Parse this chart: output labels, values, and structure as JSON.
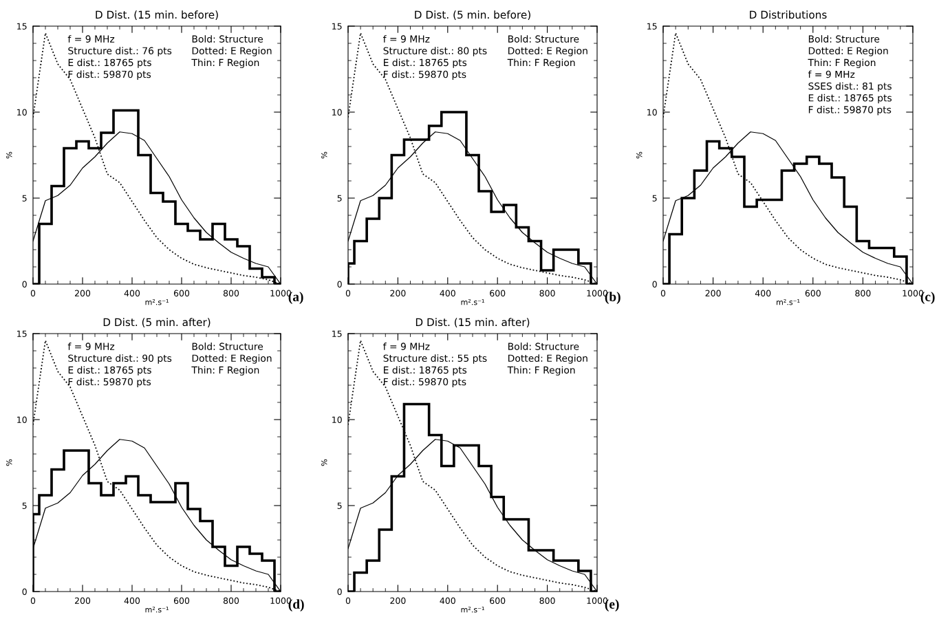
{
  "chart_data": [
    {
      "type": "line",
      "title": "D Dist. (15 min. before)",
      "xlabel": "m².s⁻¹",
      "ylabel": "%",
      "xlim": [
        0,
        1000
      ],
      "ylim": [
        0,
        15
      ],
      "xticks": [
        0,
        200,
        400,
        600,
        800,
        1000
      ],
      "yticks": [
        0,
        5,
        10,
        15
      ],
      "annotations": [
        "f = 9 MHz\nStructure dist.: 76 pts\nE dist.: 18765 pts\nF dist.: 59870 pts",
        "Bold: Structure\nDotted: E Region\nThin: F Region",
        "(a)"
      ],
      "series": [
        {
          "type": "histogram",
          "color": "#000000",
          "bins": [
            0,
            25,
            75,
            125,
            175,
            225,
            275,
            325,
            375,
            425,
            475,
            525,
            575,
            625,
            675,
            725,
            775,
            825,
            875,
            925,
            975,
            1000
          ],
          "values": [
            0,
            3.5,
            5.7,
            7.9,
            8.3,
            7.9,
            8.8,
            10.1,
            10.1,
            7.5,
            5.3,
            4.8,
            3.5,
            3.1,
            2.6,
            3.5,
            2.6,
            2.2,
            0.9,
            0.4,
            0
          ]
        },
        {
          "type": "line",
          "line_style": "dotted",
          "color": "#000000",
          "x": [
            0,
            50,
            100,
            150,
            200,
            250,
            300,
            350,
            400,
            450,
            500,
            550,
            600,
            650,
            700,
            750,
            800,
            850,
            900,
            950,
            1000
          ],
          "values": [
            9.7,
            14.6,
            12.8,
            11.9,
            10.2,
            8.5,
            6.4,
            5.9,
            4.8,
            3.7,
            2.7,
            2.0,
            1.5,
            1.15,
            0.95,
            0.8,
            0.65,
            0.5,
            0.4,
            0.25,
            0
          ]
        },
        {
          "type": "line",
          "line_style": "solid",
          "color": "#000000",
          "x": [
            0,
            50,
            100,
            150,
            200,
            250,
            300,
            350,
            400,
            450,
            500,
            550,
            600,
            650,
            700,
            750,
            800,
            850,
            900,
            950,
            1000
          ],
          "values": [
            2.5,
            4.85,
            5.15,
            5.75,
            6.75,
            7.4,
            8.2,
            8.85,
            8.75,
            8.35,
            7.3,
            6.25,
            4.9,
            3.85,
            3.0,
            2.4,
            1.85,
            1.5,
            1.2,
            1.0,
            0
          ]
        }
      ]
    },
    {
      "type": "line",
      "title": "D Dist. (5 min. before)",
      "xlabel": "m².s⁻¹",
      "ylabel": "%",
      "xlim": [
        0,
        1000
      ],
      "ylim": [
        0,
        15
      ],
      "xticks": [
        0,
        200,
        400,
        600,
        800,
        1000
      ],
      "yticks": [
        0,
        5,
        10,
        15
      ],
      "annotations": [
        "f = 9 MHz\nStructure dist.: 80 pts\nE dist.: 18765 pts\nF dist.: 59870 pts",
        "Bold: Structure\nDotted: E Region\nThin: F Region",
        "(b)"
      ],
      "series": [
        {
          "type": "histogram",
          "color": "#000000",
          "bins": [
            0,
            25,
            75,
            125,
            175,
            225,
            275,
            325,
            375,
            425,
            475,
            525,
            575,
            625,
            675,
            725,
            775,
            825,
            875,
            925,
            975,
            1000
          ],
          "values": [
            1.2,
            2.5,
            3.8,
            5.0,
            7.5,
            8.4,
            8.4,
            9.2,
            10.0,
            10.0,
            7.5,
            5.4,
            4.2,
            4.6,
            3.3,
            2.5,
            0.8,
            2.0,
            2.0,
            1.2,
            0
          ]
        },
        {
          "type": "line",
          "line_style": "dotted",
          "color": "#000000",
          "x": [
            0,
            50,
            100,
            150,
            200,
            250,
            300,
            350,
            400,
            450,
            500,
            550,
            600,
            650,
            700,
            750,
            800,
            850,
            900,
            950,
            1000
          ],
          "values": [
            9.7,
            14.6,
            12.8,
            11.9,
            10.2,
            8.5,
            6.4,
            5.9,
            4.8,
            3.7,
            2.7,
            2.0,
            1.5,
            1.15,
            0.95,
            0.8,
            0.65,
            0.5,
            0.4,
            0.25,
            0
          ]
        },
        {
          "type": "line",
          "line_style": "solid",
          "color": "#000000",
          "x": [
            0,
            50,
            100,
            150,
            200,
            250,
            300,
            350,
            400,
            450,
            500,
            550,
            600,
            650,
            700,
            750,
            800,
            850,
            900,
            950,
            1000
          ],
          "values": [
            2.5,
            4.85,
            5.15,
            5.75,
            6.75,
            7.4,
            8.2,
            8.85,
            8.75,
            8.35,
            7.3,
            6.25,
            4.9,
            3.85,
            3.0,
            2.4,
            1.85,
            1.5,
            1.2,
            1.0,
            0
          ]
        }
      ]
    },
    {
      "type": "line",
      "title": "D Distributions",
      "xlabel": "m².s⁻¹",
      "ylabel": "%",
      "xlim": [
        0,
        1000
      ],
      "ylim": [
        0,
        15
      ],
      "xticks": [
        0,
        200,
        400,
        600,
        800,
        1000
      ],
      "yticks": [
        0,
        5,
        10,
        15
      ],
      "annotations": [
        "Bold: Structure\nDotted: E Region\nThin: F Region\nf = 9 MHz\nSSES dist.: 81 pts\nE dist.: 18765 pts\nF dist.: 59870 pts",
        "(c)"
      ],
      "series": [
        {
          "type": "histogram",
          "color": "#000000",
          "bins": [
            0,
            25,
            75,
            125,
            175,
            225,
            275,
            325,
            375,
            425,
            475,
            525,
            575,
            625,
            675,
            725,
            775,
            825,
            875,
            925,
            975,
            1000
          ],
          "values": [
            0,
            2.9,
            5.0,
            6.6,
            8.3,
            7.9,
            7.4,
            4.5,
            4.9,
            4.9,
            6.6,
            7.0,
            7.4,
            7.0,
            6.2,
            4.5,
            2.5,
            2.1,
            2.1,
            1.6,
            0
          ]
        },
        {
          "type": "line",
          "line_style": "dotted",
          "color": "#000000",
          "x": [
            0,
            50,
            100,
            150,
            200,
            250,
            300,
            350,
            400,
            450,
            500,
            550,
            600,
            650,
            700,
            750,
            800,
            850,
            900,
            950,
            1000
          ],
          "values": [
            9.7,
            14.6,
            12.8,
            11.9,
            10.2,
            8.5,
            6.4,
            5.9,
            4.8,
            3.7,
            2.7,
            2.0,
            1.5,
            1.15,
            0.95,
            0.8,
            0.65,
            0.5,
            0.4,
            0.25,
            0
          ]
        },
        {
          "type": "line",
          "line_style": "solid",
          "color": "#000000",
          "x": [
            0,
            50,
            100,
            150,
            200,
            250,
            300,
            350,
            400,
            450,
            500,
            550,
            600,
            650,
            700,
            750,
            800,
            850,
            900,
            950,
            1000
          ],
          "values": [
            2.5,
            4.85,
            5.15,
            5.75,
            6.75,
            7.4,
            8.2,
            8.85,
            8.75,
            8.35,
            7.3,
            6.25,
            4.9,
            3.85,
            3.0,
            2.4,
            1.85,
            1.5,
            1.2,
            1.0,
            0
          ]
        }
      ]
    },
    {
      "type": "line",
      "title": "D Dist. (5 min. after)",
      "xlabel": "m².s⁻¹",
      "ylabel": "%",
      "xlim": [
        0,
        1000
      ],
      "ylim": [
        0,
        15
      ],
      "xticks": [
        0,
        200,
        400,
        600,
        800,
        1000
      ],
      "yticks": [
        0,
        5,
        10,
        15
      ],
      "annotations": [
        "f = 9 MHz\nStructure dist.: 90 pts\nE dist.: 18765 pts\nF dist.: 59870 pts",
        "Bold: Structure\nDotted: E Region\nThin: F Region",
        "(d)"
      ],
      "series": [
        {
          "type": "histogram",
          "color": "#000000",
          "bins": [
            0,
            25,
            75,
            125,
            175,
            225,
            275,
            325,
            375,
            425,
            475,
            525,
            575,
            625,
            675,
            725,
            775,
            825,
            875,
            925,
            975,
            1000
          ],
          "values": [
            4.5,
            5.6,
            7.1,
            8.2,
            8.2,
            6.3,
            5.6,
            6.3,
            6.7,
            5.6,
            5.2,
            5.2,
            6.3,
            4.8,
            4.1,
            2.6,
            1.5,
            2.6,
            2.2,
            1.8,
            0
          ]
        },
        {
          "type": "line",
          "line_style": "dotted",
          "color": "#000000",
          "x": [
            0,
            50,
            100,
            150,
            200,
            250,
            300,
            350,
            400,
            450,
            500,
            550,
            600,
            650,
            700,
            750,
            800,
            850,
            900,
            950,
            1000
          ],
          "values": [
            9.7,
            14.6,
            12.8,
            11.9,
            10.2,
            8.5,
            6.4,
            5.9,
            4.8,
            3.7,
            2.7,
            2.0,
            1.5,
            1.15,
            0.95,
            0.8,
            0.65,
            0.5,
            0.4,
            0.25,
            0
          ]
        },
        {
          "type": "line",
          "line_style": "solid",
          "color": "#000000",
          "x": [
            0,
            50,
            100,
            150,
            200,
            250,
            300,
            350,
            400,
            450,
            500,
            550,
            600,
            650,
            700,
            750,
            800,
            850,
            900,
            950,
            1000
          ],
          "values": [
            2.5,
            4.85,
            5.15,
            5.75,
            6.75,
            7.4,
            8.2,
            8.85,
            8.75,
            8.35,
            7.3,
            6.25,
            4.9,
            3.85,
            3.0,
            2.4,
            1.85,
            1.5,
            1.2,
            1.0,
            0
          ]
        }
      ]
    },
    {
      "type": "line",
      "title": "D Dist. (15 min. after)",
      "xlabel": "m².s⁻¹",
      "ylabel": "%",
      "xlim": [
        0,
        1000
      ],
      "ylim": [
        0,
        15
      ],
      "xticks": [
        0,
        200,
        400,
        600,
        800,
        1000
      ],
      "yticks": [
        0,
        5,
        10,
        15
      ],
      "annotations": [
        "f = 9 MHz\nStructure dist.: 55 pts\nE dist.: 18765 pts\nF dist.: 59870 pts",
        "Bold: Structure\nDotted: E Region\nThin: F Region",
        "(e)"
      ],
      "series": [
        {
          "type": "histogram",
          "color": "#000000",
          "bins": [
            0,
            25,
            75,
            125,
            175,
            225,
            275,
            325,
            375,
            425,
            475,
            525,
            575,
            625,
            675,
            725,
            775,
            825,
            875,
            925,
            975,
            1000
          ],
          "values": [
            0,
            1.1,
            1.8,
            3.6,
            6.7,
            10.9,
            10.9,
            9.1,
            7.3,
            8.5,
            8.5,
            7.3,
            5.5,
            4.2,
            4.2,
            2.4,
            2.4,
            1.8,
            1.8,
            1.2,
            0
          ]
        },
        {
          "type": "line",
          "line_style": "dotted",
          "color": "#000000",
          "x": [
            0,
            50,
            100,
            150,
            200,
            250,
            300,
            350,
            400,
            450,
            500,
            550,
            600,
            650,
            700,
            750,
            800,
            850,
            900,
            950,
            1000
          ],
          "values": [
            9.7,
            14.6,
            12.8,
            11.9,
            10.2,
            8.5,
            6.4,
            5.9,
            4.8,
            3.7,
            2.7,
            2.0,
            1.5,
            1.15,
            0.95,
            0.8,
            0.65,
            0.5,
            0.4,
            0.25,
            0
          ]
        },
        {
          "type": "line",
          "line_style": "solid",
          "color": "#000000",
          "x": [
            0,
            50,
            100,
            150,
            200,
            250,
            300,
            350,
            400,
            450,
            500,
            550,
            600,
            650,
            700,
            750,
            800,
            850,
            900,
            950,
            1000
          ],
          "values": [
            2.5,
            4.85,
            5.15,
            5.75,
            6.75,
            7.4,
            8.2,
            8.85,
            8.75,
            8.35,
            7.3,
            6.25,
            4.9,
            3.85,
            3.0,
            2.4,
            1.85,
            1.5,
            1.2,
            1.0,
            0
          ]
        }
      ]
    }
  ]
}
